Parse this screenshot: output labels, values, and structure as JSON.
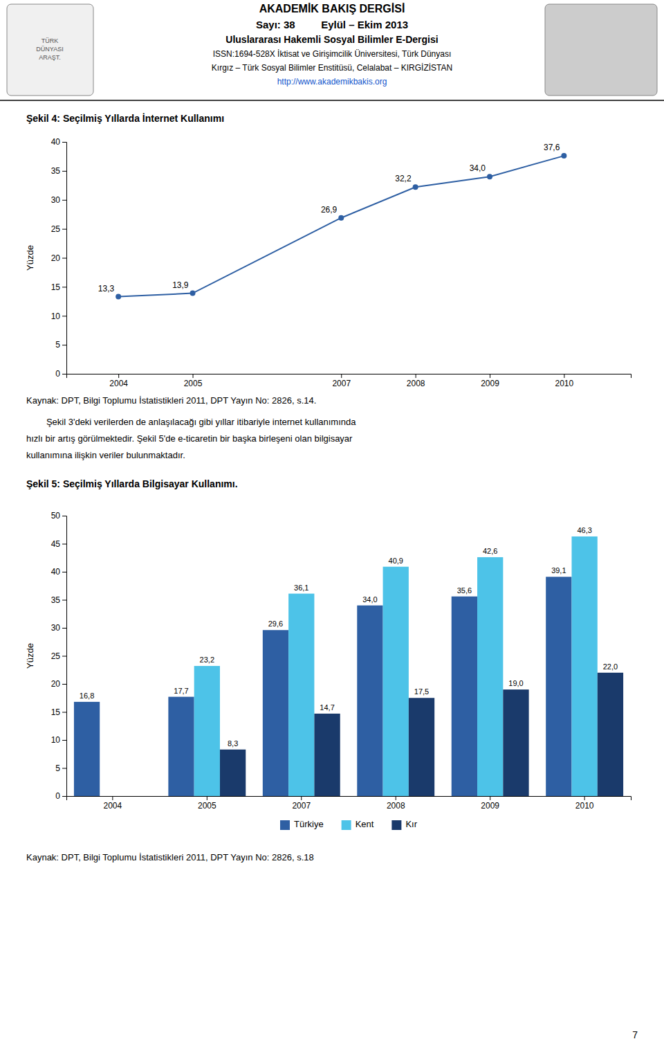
{
  "page": {
    "header": [
      "AKADEMİK BAKIŞ DERGİSİ",
      "Sayı: 38         Eylül – Ekim 2013",
      "Uluslararası Hakemli Sosyal Bilimler E-Dergisi",
      "ISSN:1694-528X İktisat ve Girişimcilik Üniversitesi, Türk Dünyası",
      "Kırgız – Türk Sosyal Bilimler Enstitüsü, Celalabat – KIRGİZİSTAN",
      "http://www.akademikbakis.org"
    ],
    "logo_text": [
      "TÜRK",
      "DÜNYASI",
      "ARAŞT."
    ],
    "body": [
      "        Şekil 3'deki verilerden de anlaşılacağı gibi yıllar itibariyle internet kullanımında",
      "hızlı bir artış görülmektedir. Şekil 5'de e-ticaretin bir başka birleşeni olan bilgisayar",
      "kullanımına ilişkin veriler bulunmaktadır."
    ],
    "page_number": "7"
  },
  "chart_data": [
    {
      "type": "line",
      "title": "Şekil 4: Seçilmiş Yıllarda İnternet Kullanımı",
      "source": "Kaynak: DPT, Bilgi Toplumu İstatistikleri 2011, DPT Yayın No: 2826, s.14.",
      "x": [
        2004,
        2005,
        2007,
        2008,
        2009,
        2010
      ],
      "values": [
        13.3,
        13.9,
        26.9,
        32.2,
        34.0,
        37.6
      ],
      "value_labels": [
        "13,3",
        "13,9",
        "26,9",
        "32,2",
        "34,0",
        "37,6"
      ],
      "data_labels": true,
      "color": "#2E5FA3",
      "marker": "circle",
      "ylabel": "Yüzde",
      "xlim": [
        2003.3,
        2010.9
      ],
      "xticks": [
        2004,
        2005,
        2007,
        2008,
        2009,
        2010
      ],
      "ylim": [
        0,
        40
      ],
      "yticks": [
        0,
        5,
        10,
        15,
        20,
        25,
        30,
        35,
        40
      ],
      "grid": false
    },
    {
      "type": "bar",
      "title": "Şekil 5: Seçilmiş Yıllarda Bilgisayar Kullanımı.",
      "source": "Kaynak: DPT, Bilgi Toplumu İstatistikleri 2011, DPT Yayın No: 2826, s.18",
      "categories": [
        "2004",
        "2005",
        "2007",
        "2008",
        "2009",
        "2010"
      ],
      "series": [
        {
          "name": "Türkiye",
          "color": "#2E5FA3",
          "values": [
            16.8,
            17.7,
            29.6,
            34.0,
            35.6,
            39.1
          ],
          "value_labels": [
            "16,8",
            "17,7",
            "29,6",
            "34,0",
            "35,6",
            "39,1"
          ]
        },
        {
          "name": "Kent",
          "color": "#4DC3E8",
          "values": [
            null,
            23.2,
            36.1,
            40.9,
            42.6,
            46.3
          ],
          "value_labels": [
            null,
            "23,2",
            "36,1",
            "40,9",
            "42,6",
            "46,3"
          ]
        },
        {
          "name": "Kır",
          "color": "#1A3A6B",
          "values": [
            null,
            8.3,
            14.7,
            17.5,
            19.0,
            22.0
          ],
          "value_labels": [
            null,
            "8,3",
            "14,7",
            "17,5",
            "19,0",
            "22,0"
          ]
        }
      ],
      "data_labels": true,
      "ylabel": "Yüzde",
      "ylim": [
        0,
        50
      ],
      "yticks": [
        0,
        5,
        10,
        15,
        20,
        25,
        30,
        35,
        40,
        45,
        50
      ],
      "grid": false,
      "legend": "bottom"
    }
  ]
}
